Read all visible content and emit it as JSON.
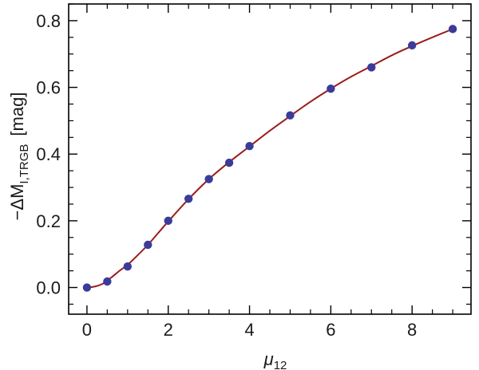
{
  "chart_data": {
    "type": "scatter",
    "xlabel": "μ",
    "xlabel_sub": "12",
    "ylabel": "−ΔM",
    "ylabel_sub": "I,TRGB",
    "ylabel_unit": "[mag]",
    "xlim": [
      -0.45,
      9.45
    ],
    "ylim": [
      -0.08,
      0.85
    ],
    "xticks": [
      0,
      2,
      4,
      6,
      8
    ],
    "xtick_labels": [
      "0",
      "2",
      "4",
      "6",
      "8"
    ],
    "xminor_step": 0.5,
    "yticks": [
      0.0,
      0.2,
      0.4,
      0.6,
      0.8
    ],
    "ytick_labels": [
      "0.0",
      "0.2",
      "0.4",
      "0.6",
      "0.8"
    ],
    "yminor_step": 0.05,
    "grid": false,
    "series": [
      {
        "kind": "points",
        "color": "#3b3b9a",
        "x": [
          0,
          0.5,
          1,
          1.5,
          2,
          2.5,
          3,
          3.5,
          4,
          5,
          6,
          7,
          8,
          9
        ],
        "y": [
          0.0,
          0.018,
          0.063,
          0.128,
          0.2,
          0.266,
          0.325,
          0.374,
          0.424,
          0.516,
          0.596,
          0.66,
          0.726,
          0.775
        ]
      },
      {
        "kind": "curve",
        "color": "#9b1c1c",
        "x": [
          0,
          0.2,
          0.4,
          0.6,
          0.8,
          1.0,
          1.25,
          1.5,
          1.75,
          2.0,
          2.5,
          3.0,
          3.5,
          4.0,
          4.5,
          5.0,
          5.5,
          6.0,
          6.5,
          7.0,
          7.5,
          8.0,
          8.5,
          9.0
        ],
        "y": [
          0.0,
          0.003,
          0.012,
          0.03,
          0.05,
          0.068,
          0.097,
          0.128,
          0.163,
          0.198,
          0.265,
          0.325,
          0.376,
          0.423,
          0.47,
          0.514,
          0.557,
          0.596,
          0.632,
          0.664,
          0.696,
          0.724,
          0.75,
          0.775
        ]
      }
    ]
  }
}
